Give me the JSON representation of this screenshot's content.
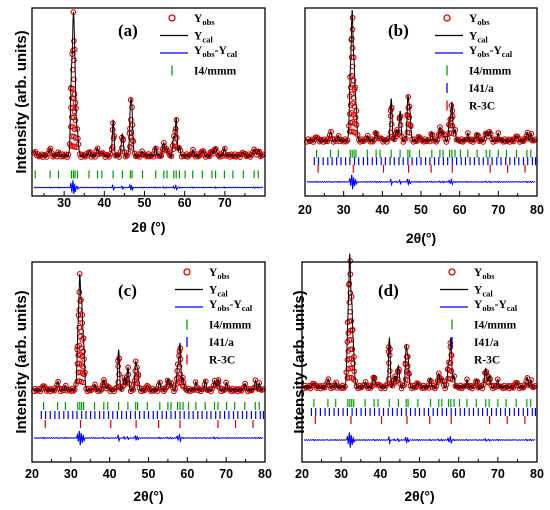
{
  "chart_data": [
    {
      "type": "line",
      "panel_label": "(a)",
      "xlabel": "2θ (°)",
      "ylabel": "Intensity (arb. units)",
      "xlim": [
        22,
        80
      ],
      "xticks": [
        30,
        40,
        50,
        60,
        70
      ],
      "legend_position": "top-right",
      "series": [
        {
          "name_main": "Y",
          "name_sub": "obs",
          "marker": "open-circle",
          "color": "#e00000"
        },
        {
          "name_main": "Y",
          "name_sub": "cal",
          "marker": "line",
          "color": "#000000"
        },
        {
          "name_parts": [
            [
              "Y",
              ""
            ],
            [
              "obs",
              "sub"
            ],
            [
              "-Y",
              ""
            ],
            [
              "cal",
              "sub"
            ]
          ],
          "marker": "line",
          "color": "#0000ff"
        },
        {
          "name": "I4/mmm",
          "marker": "tick",
          "color": "#00a000"
        }
      ],
      "peaks": [
        [
          22.8,
          0.03
        ],
        [
          26.5,
          0.07
        ],
        [
          28.6,
          0.02
        ],
        [
          31.8,
          0.6
        ],
        [
          32.3,
          0.97
        ],
        [
          32.7,
          0.55
        ],
        [
          33.3,
          0.2
        ],
        [
          36.2,
          0.03
        ],
        [
          38.3,
          0.06
        ],
        [
          39.4,
          0.03
        ],
        [
          42.2,
          0.27
        ],
        [
          44.5,
          0.18
        ],
        [
          46.5,
          0.35
        ],
        [
          46.9,
          0.3
        ],
        [
          49.5,
          0.03
        ],
        [
          52.8,
          0.06
        ],
        [
          54.8,
          0.11
        ],
        [
          55.6,
          0.06
        ],
        [
          57.3,
          0.15
        ],
        [
          57.9,
          0.28
        ],
        [
          58.7,
          0.06
        ],
        [
          62.0,
          0.04
        ],
        [
          64.4,
          0.05
        ],
        [
          66.8,
          0.04
        ],
        [
          67.7,
          0.07
        ],
        [
          69.9,
          0.05
        ],
        [
          74.6,
          0.03
        ],
        [
          77.3,
          0.06
        ],
        [
          78.3,
          0.04
        ]
      ],
      "reflections": [
        [
          22.8,
          26.5,
          28.6,
          31.8,
          32.3,
          32.7,
          33.3,
          36.2,
          38.3,
          39.4,
          42.2,
          44.5,
          46.5,
          46.9,
          49.5,
          52.8,
          54.8,
          55.6,
          57.3,
          57.9,
          58.7,
          60.1,
          62.0,
          64.4,
          66.8,
          67.7,
          69.9,
          72.0,
          74.6,
          77.3,
          78.3
        ]
      ]
    },
    {
      "type": "line",
      "panel_label": "(b)",
      "xlabel": "2θ(°)",
      "ylabel": "",
      "xlim": [
        20,
        80
      ],
      "xticks": [
        20,
        30,
        40,
        50,
        60,
        70,
        80
      ],
      "legend_position": "top-right",
      "series": [
        {
          "name_main": "Y",
          "name_sub": "obs",
          "marker": "open-circle",
          "color": "#e00000"
        },
        {
          "name_main": "Y",
          "name_sub": "cal",
          "marker": "line",
          "color": "#000000"
        },
        {
          "name_parts": [
            [
              "Y",
              ""
            ],
            [
              "obs",
              "sub"
            ],
            [
              "-Y",
              ""
            ],
            [
              "cal",
              "sub"
            ]
          ],
          "marker": "line",
          "color": "#0000ff"
        },
        {
          "name": "I4/mmm",
          "marker": "tick",
          "color": "#00a000"
        },
        {
          "name": "I41/a",
          "marker": "tick",
          "color": "#0000ff"
        },
        {
          "name": "R-3C",
          "marker": "tick",
          "color": "#e00000"
        }
      ],
      "peaks": [
        [
          23.0,
          0.04
        ],
        [
          26.6,
          0.08
        ],
        [
          28.6,
          0.03
        ],
        [
          31.7,
          0.5
        ],
        [
          32.2,
          0.97
        ],
        [
          32.7,
          0.55
        ],
        [
          33.2,
          0.25
        ],
        [
          36.1,
          0.04
        ],
        [
          38.4,
          0.08
        ],
        [
          39.4,
          0.03
        ],
        [
          42.3,
          0.33
        ],
        [
          43.7,
          0.1
        ],
        [
          44.6,
          0.25
        ],
        [
          46.6,
          0.33
        ],
        [
          47.1,
          0.25
        ],
        [
          49.6,
          0.04
        ],
        [
          52.8,
          0.06
        ],
        [
          54.9,
          0.12
        ],
        [
          55.7,
          0.08
        ],
        [
          57.4,
          0.18
        ],
        [
          58.0,
          0.3
        ],
        [
          58.8,
          0.08
        ],
        [
          62.1,
          0.05
        ],
        [
          64.5,
          0.06
        ],
        [
          66.9,
          0.08
        ],
        [
          67.8,
          0.09
        ],
        [
          70.0,
          0.05
        ],
        [
          74.7,
          0.05
        ],
        [
          77.4,
          0.07
        ],
        [
          78.4,
          0.05
        ]
      ],
      "reflections": [
        [
          23.0,
          26.6,
          28.6,
          31.7,
          32.2,
          32.7,
          33.2,
          36.1,
          38.4,
          39.4,
          42.3,
          44.6,
          46.6,
          47.1,
          49.6,
          52.8,
          54.9,
          55.7,
          57.4,
          58.0,
          58.8,
          60.2,
          62.1,
          64.5,
          66.9,
          67.8,
          70.0,
          72.1,
          74.7,
          77.4,
          78.4
        ],
        [
          22.4,
          23.5,
          24.7,
          25.9,
          27.0,
          28.2,
          29.3,
          30.5,
          31.6,
          32.8,
          33.9,
          35.1,
          36.2,
          37.4,
          38.5,
          39.7,
          40.8,
          42.0,
          43.1,
          44.3,
          45.4,
          46.6,
          47.7,
          48.9,
          50.0,
          51.2,
          52.3,
          53.5,
          54.6,
          55.8,
          56.9,
          58.1,
          59.2,
          60.4,
          61.5,
          62.7,
          63.8,
          65.0,
          66.1,
          67.3,
          68.4,
          69.6,
          70.7,
          71.9,
          73.0,
          74.2,
          75.3,
          76.5,
          77.6,
          78.8,
          79.6
        ],
        [
          23.4,
          32.5,
          40.3,
          46.8,
          52.6,
          58.1,
          67.9,
          72.4,
          76.9
        ]
      ]
    },
    {
      "type": "line",
      "panel_label": "(c)",
      "xlabel": "2θ(°)",
      "ylabel": "Intensity (arb. units)",
      "xlim": [
        20,
        80
      ],
      "xticks": [
        20,
        30,
        40,
        50,
        60,
        70,
        80
      ],
      "legend_position": "top-right",
      "series": [
        {
          "name_main": "Y",
          "name_sub": "obs",
          "marker": "open-circle",
          "color": "#e00000"
        },
        {
          "name_main": "Y",
          "name_sub": "cal",
          "marker": "line",
          "color": "#000000"
        },
        {
          "name_parts": [
            [
              "Y",
              ""
            ],
            [
              "obs",
              "sub"
            ],
            [
              "-Y",
              ""
            ],
            [
              "cal",
              "sub"
            ]
          ],
          "marker": "line",
          "color": "#0000ff"
        },
        {
          "name": "I4/mmm",
          "marker": "tick",
          "color": "#00a000"
        },
        {
          "name": "I41/a",
          "marker": "tick",
          "color": "#0000ff"
        },
        {
          "name": "R-3C",
          "marker": "tick",
          "color": "#e00000"
        }
      ],
      "peaks": [
        [
          23.0,
          0.05
        ],
        [
          26.6,
          0.08
        ],
        [
          28.6,
          0.03
        ],
        [
          31.8,
          0.45
        ],
        [
          32.3,
          0.92
        ],
        [
          32.8,
          0.65
        ],
        [
          33.3,
          0.4
        ],
        [
          36.1,
          0.05
        ],
        [
          38.5,
          0.1
        ],
        [
          39.5,
          0.04
        ],
        [
          42.3,
          0.34
        ],
        [
          43.8,
          0.12
        ],
        [
          44.7,
          0.2
        ],
        [
          46.7,
          0.22
        ],
        [
          47.2,
          0.18
        ],
        [
          49.7,
          0.05
        ],
        [
          52.9,
          0.07
        ],
        [
          55.0,
          0.1
        ],
        [
          55.8,
          0.07
        ],
        [
          57.5,
          0.22
        ],
        [
          58.1,
          0.4
        ],
        [
          58.9,
          0.1
        ],
        [
          62.2,
          0.06
        ],
        [
          64.6,
          0.08
        ],
        [
          67.0,
          0.09
        ],
        [
          67.9,
          0.1
        ],
        [
          70.1,
          0.06
        ],
        [
          74.8,
          0.06
        ],
        [
          77.5,
          0.08
        ],
        [
          78.5,
          0.05
        ]
      ],
      "reflections": [
        [
          23.0,
          26.6,
          28.6,
          31.8,
          32.3,
          32.8,
          33.3,
          36.1,
          38.5,
          39.5,
          42.3,
          44.7,
          46.7,
          47.2,
          49.7,
          52.9,
          55.0,
          55.8,
          57.5,
          58.1,
          58.9,
          60.3,
          62.2,
          64.6,
          67.0,
          67.9,
          70.1,
          72.2,
          74.8,
          77.5,
          78.5
        ],
        [
          22.4,
          23.5,
          24.7,
          25.9,
          27.0,
          28.2,
          29.3,
          30.5,
          31.6,
          32.8,
          33.9,
          35.1,
          36.2,
          37.4,
          38.5,
          39.7,
          40.8,
          42.0,
          43.1,
          44.3,
          45.4,
          46.6,
          47.7,
          48.9,
          50.0,
          51.2,
          52.3,
          53.5,
          54.6,
          55.8,
          56.9,
          58.1,
          59.2,
          60.4,
          61.5,
          62.7,
          63.8,
          65.0,
          66.1,
          67.3,
          68.4,
          69.6,
          70.7,
          71.9,
          73.0,
          74.2,
          75.3,
          76.5,
          77.6,
          78.8,
          79.6
        ],
        [
          23.4,
          32.5,
          40.3,
          46.8,
          52.6,
          58.1,
          67.9,
          72.4,
          76.9
        ]
      ]
    },
    {
      "type": "line",
      "panel_label": "(d)",
      "xlabel": "2θ(°)",
      "ylabel": "Intensity (arb. units)",
      "xlim": [
        20,
        80
      ],
      "xticks": [
        20,
        30,
        40,
        50,
        60,
        70,
        80
      ],
      "legend_position": "top-right",
      "series": [
        {
          "name_main": "Y",
          "name_sub": "obs",
          "marker": "open-circle",
          "color": "#e00000"
        },
        {
          "name_main": "Y",
          "name_sub": "cal",
          "marker": "line",
          "color": "#000000"
        },
        {
          "name_parts": [
            [
              "Y",
              ""
            ],
            [
              "obs",
              "sub"
            ],
            [
              "-Y",
              ""
            ],
            [
              "cal",
              "sub"
            ]
          ],
          "marker": "line",
          "color": "#0000ff"
        },
        {
          "name": "I4/mmm",
          "marker": "tick",
          "color": "#00a000"
        },
        {
          "name": "I41/a",
          "marker": "tick",
          "color": "#0000ff"
        },
        {
          "name": "R-3C",
          "marker": "tick",
          "color": "#e00000"
        }
      ],
      "peaks": [
        [
          23.0,
          0.04
        ],
        [
          26.6,
          0.07
        ],
        [
          28.6,
          0.03
        ],
        [
          31.7,
          0.5
        ],
        [
          32.2,
          0.97
        ],
        [
          32.7,
          0.6
        ],
        [
          33.2,
          0.25
        ],
        [
          36.1,
          0.04
        ],
        [
          38.4,
          0.1
        ],
        [
          39.4,
          0.03
        ],
        [
          42.3,
          0.38
        ],
        [
          43.7,
          0.1
        ],
        [
          44.6,
          0.18
        ],
        [
          46.6,
          0.3
        ],
        [
          47.1,
          0.22
        ],
        [
          49.6,
          0.04
        ],
        [
          52.8,
          0.06
        ],
        [
          54.9,
          0.12
        ],
        [
          55.7,
          0.08
        ],
        [
          57.4,
          0.2
        ],
        [
          58.0,
          0.38
        ],
        [
          58.8,
          0.08
        ],
        [
          62.1,
          0.05
        ],
        [
          64.5,
          0.06
        ],
        [
          66.9,
          0.16
        ],
        [
          67.8,
          0.1
        ],
        [
          70.0,
          0.05
        ],
        [
          74.7,
          0.05
        ],
        [
          77.4,
          0.08
        ],
        [
          78.4,
          0.05
        ]
      ],
      "reflections": [
        [
          23.0,
          26.6,
          28.6,
          31.7,
          32.2,
          32.7,
          33.2,
          36.1,
          38.4,
          39.4,
          42.3,
          44.6,
          46.6,
          47.1,
          49.6,
          52.8,
          54.9,
          55.7,
          57.4,
          58.0,
          58.8,
          60.2,
          62.1,
          64.5,
          66.9,
          67.8,
          70.0,
          72.1,
          74.7,
          77.4,
          78.4
        ],
        [
          22.4,
          23.5,
          24.7,
          25.9,
          27.0,
          28.2,
          29.3,
          30.5,
          31.6,
          32.8,
          33.9,
          35.1,
          36.2,
          37.4,
          38.5,
          39.7,
          40.8,
          42.0,
          43.1,
          44.3,
          45.4,
          46.6,
          47.7,
          48.9,
          50.0,
          51.2,
          52.3,
          53.5,
          54.6,
          55.8,
          56.9,
          58.1,
          59.2,
          60.4,
          61.5,
          62.7,
          63.8,
          65.0,
          66.1,
          67.3,
          68.4,
          69.6,
          70.7,
          71.9,
          73.0,
          74.2,
          75.3,
          76.5,
          77.6,
          78.8,
          79.6
        ],
        [
          23.4,
          32.5,
          40.3,
          46.8,
          52.6,
          58.1,
          67.9,
          72.4,
          76.9
        ]
      ]
    }
  ]
}
